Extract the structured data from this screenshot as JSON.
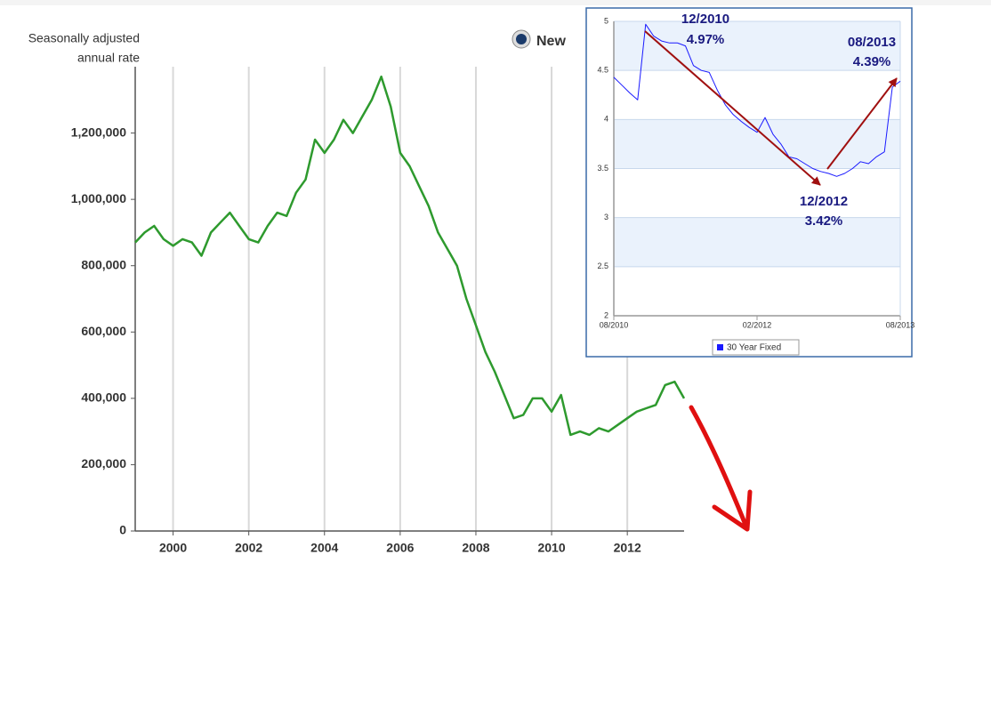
{
  "chart_data": [
    {
      "type": "line",
      "y_label": [
        "Seasonally adjusted",
        "annual rate"
      ],
      "legend_marker": "radio",
      "x": [
        1999.0,
        1999.25,
        1999.5,
        1999.75,
        2000.0,
        2000.25,
        2000.5,
        2000.75,
        2001.0,
        2001.25,
        2001.5,
        2001.75,
        2002.0,
        2002.25,
        2002.5,
        2002.75,
        2003.0,
        2003.25,
        2003.5,
        2003.75,
        2004.0,
        2004.25,
        2004.5,
        2004.75,
        2005.0,
        2005.25,
        2005.5,
        2005.75,
        2006.0,
        2006.25,
        2006.5,
        2006.75,
        2007.0,
        2007.25,
        2007.5,
        2007.75,
        2008.0,
        2008.25,
        2008.5,
        2008.75,
        2009.0,
        2009.25,
        2009.5,
        2009.75,
        2010.0,
        2010.25,
        2010.5,
        2010.75,
        2011.0,
        2011.25,
        2011.5,
        2011.75,
        2012.0,
        2012.25,
        2012.5,
        2012.75,
        2013.0,
        2013.25,
        2013.5
      ],
      "series": [
        {
          "name": "New",
          "color": "#2e9a2e",
          "values": [
            870000,
            900000,
            920000,
            880000,
            860000,
            880000,
            870000,
            830000,
            900000,
            930000,
            960000,
            920000,
            880000,
            870000,
            920000,
            960000,
            950000,
            1020000,
            1060000,
            1180000,
            1140000,
            1180000,
            1240000,
            1200000,
            1250000,
            1300000,
            1370000,
            1280000,
            1140000,
            1100000,
            1040000,
            980000,
            900000,
            850000,
            800000,
            700000,
            620000,
            540000,
            480000,
            410000,
            340000,
            350000,
            400000,
            400000,
            360000,
            410000,
            290000,
            300000,
            290000,
            310000,
            300000,
            320000,
            340000,
            360000,
            370000,
            380000,
            440000,
            450000,
            400000
          ]
        }
      ],
      "xlim": [
        1999,
        2013.5
      ],
      "xticks": [
        2000,
        2002,
        2004,
        2006,
        2008,
        2010,
        2012
      ],
      "ylim": [
        0,
        1400000
      ],
      "yticks": [
        0,
        {
          "value": 200000,
          "label": "200,000"
        },
        {
          "value": 400000,
          "label": "400,000"
        },
        {
          "value": 600000,
          "label": "600,000"
        },
        {
          "value": 800000,
          "label": "800,000"
        },
        {
          "value": 1000000,
          "label": "1,000,000"
        },
        {
          "value": 1200000,
          "label": "1,200,000"
        }
      ],
      "grid": "x"
    },
    {
      "type": "line",
      "x": [
        2010.583,
        2010.667,
        2010.75,
        2010.833,
        2010.917,
        2011.0,
        2011.083,
        2011.167,
        2011.25,
        2011.333,
        2011.417,
        2011.5,
        2011.583,
        2011.667,
        2011.75,
        2011.833,
        2011.917,
        2012.0,
        2012.083,
        2012.167,
        2012.25,
        2012.333,
        2012.417,
        2012.5,
        2012.583,
        2012.667,
        2012.75,
        2012.833,
        2012.917,
        2013.0,
        2013.083,
        2013.167,
        2013.25,
        2013.333,
        2013.417,
        2013.5,
        2013.583
      ],
      "series": [
        {
          "name": "30 Year Fixed",
          "color": "#1a1aff",
          "values": [
            4.43,
            4.35,
            4.27,
            4.2,
            4.97,
            4.85,
            4.8,
            4.78,
            4.78,
            4.75,
            4.55,
            4.5,
            4.48,
            4.3,
            4.15,
            4.05,
            3.98,
            3.92,
            3.87,
            4.02,
            3.85,
            3.75,
            3.62,
            3.6,
            3.55,
            3.5,
            3.47,
            3.45,
            3.42,
            3.45,
            3.5,
            3.57,
            3.55,
            3.62,
            3.67,
            4.33,
            4.39
          ]
        }
      ],
      "xlim": [
        2010.583,
        2013.583
      ],
      "xticks": [
        {
          "value": 2010.583,
          "label": "08/2010"
        },
        {
          "value": 2012.083,
          "label": "02/2012"
        },
        {
          "value": 2013.583,
          "label": "08/2013"
        }
      ],
      "ylim": [
        2,
        5
      ],
      "yticks": [
        2,
        2.5,
        3,
        3.5,
        4,
        4.5,
        5
      ],
      "grid": "y",
      "band_color": "#eaf2fc",
      "annotations": [
        {
          "date": "12/2010",
          "rate": "4.97%"
        },
        {
          "date": "08/2013",
          "rate": "4.39%"
        },
        {
          "date": "12/2012",
          "rate": "3.42%"
        }
      ]
    }
  ]
}
